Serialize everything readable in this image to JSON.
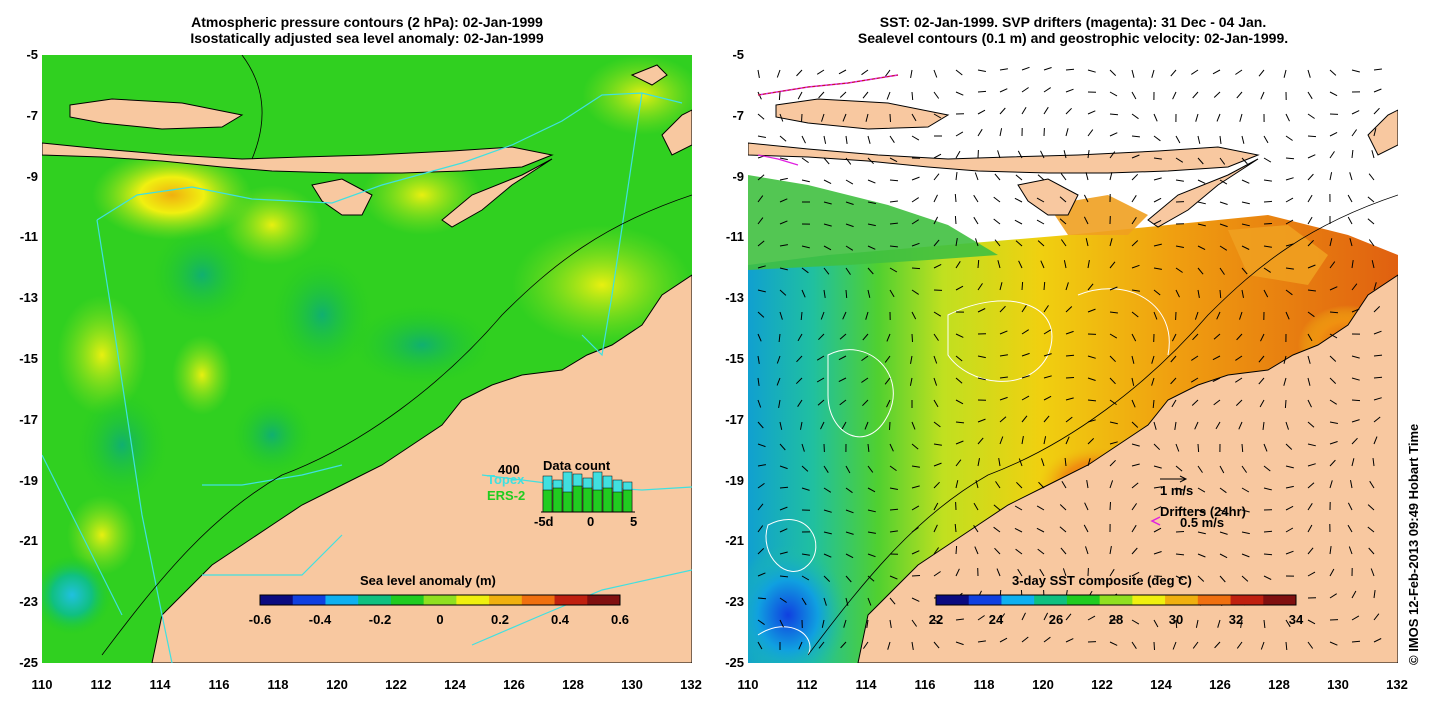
{
  "left": {
    "title_line1": "Atmospheric pressure contours (2 hPa): 02-Jan-1999",
    "title_line2": "Isostatically adjusted sea level anomaly: 02-Jan-1999",
    "colorbar_label": "Sea level anomaly (m)",
    "colorbar_ticks": [
      "-0.6",
      "-0.4",
      "-0.2",
      "0",
      "0.2",
      "0.4",
      "0.6"
    ],
    "colorbar_colors": [
      "#0a0a80",
      "#1040e0",
      "#10b0f0",
      "#10c080",
      "#20cc20",
      "#90e020",
      "#f0f010",
      "#f0b010",
      "#f07010",
      "#c02010",
      "#801010"
    ],
    "data_count": {
      "title": "Data count",
      "max_label": "400",
      "topex_label": "Topex",
      "ers_label": "ERS-2",
      "axis_labels": [
        "-5d",
        "0",
        "5"
      ],
      "topex_color": "#40e0e0",
      "ers_color": "#20cc20",
      "topex_values": [
        0.9,
        0.8,
        1.0,
        0.95,
        0.85,
        1.0,
        0.9,
        0.8,
        0.75
      ],
      "ers_values": [
        0.55,
        0.6,
        0.5,
        0.65,
        0.6,
        0.55,
        0.6,
        0.5,
        0.55
      ]
    }
  },
  "right": {
    "title_line1": "SST: 02-Jan-1999. SVP drifters (magenta): 31 Dec - 04 Jan.",
    "title_line2": "Sealevel contours (0.1 m) and geostrophic velocity: 02-Jan-1999.",
    "colorbar_label": "3-day SST composite (deg C)",
    "colorbar_ticks": [
      "22",
      "24",
      "26",
      "28",
      "30",
      "32",
      "34"
    ],
    "colorbar_colors": [
      "#0a0a80",
      "#1040e0",
      "#10b0f0",
      "#10c080",
      "#20cc20",
      "#90e020",
      "#f0f010",
      "#f0b010",
      "#f07010",
      "#c02010",
      "#801010"
    ],
    "velocity_scale_label": "1 m/s",
    "drifters_label": "Drifters (24hr)",
    "drifters_scale_label": "0.5 m/s",
    "drifter_color": "#e020e0"
  },
  "axes": {
    "x_ticks": [
      "110",
      "112",
      "114",
      "116",
      "118",
      "120",
      "122",
      "124",
      "126",
      "128",
      "130",
      "132"
    ],
    "y_ticks": [
      "-5",
      "-7",
      "-9",
      "-11",
      "-13",
      "-15",
      "-17",
      "-19",
      "-21",
      "-23",
      "-25"
    ]
  },
  "colors": {
    "land": "#f8c8a0",
    "coast": "#000000",
    "track": "#40e0e0"
  },
  "credit": "© IMOS 12-Feb-2013 09:49 Hobart Time"
}
